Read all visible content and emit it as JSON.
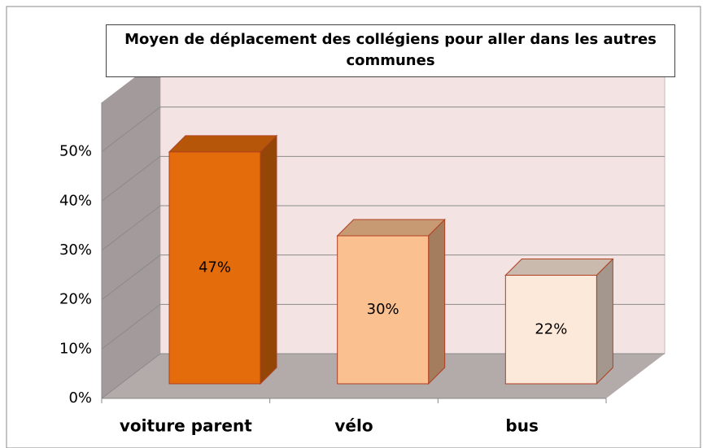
{
  "chart_data": {
    "type": "bar3d",
    "title": "Moyen de déplacement des collégiens pour aller dans les autres communes",
    "categories": [
      "voiture parent",
      "vélo",
      "bus"
    ],
    "values": [
      47,
      30,
      22
    ],
    "value_labels": [
      "47%",
      "30%",
      "22%"
    ],
    "colors": [
      "#e46c0a",
      "#fac090",
      "#fde9d9"
    ],
    "ylim": [
      0,
      60
    ],
    "yticks": [
      {
        "value": 0,
        "label": "0%"
      },
      {
        "value": 10,
        "label": "10%"
      },
      {
        "value": 20,
        "label": "20%"
      },
      {
        "value": 30,
        "label": "30%"
      },
      {
        "value": 40,
        "label": "40%"
      },
      {
        "value": 50,
        "label": "50%"
      }
    ],
    "grid": true
  }
}
